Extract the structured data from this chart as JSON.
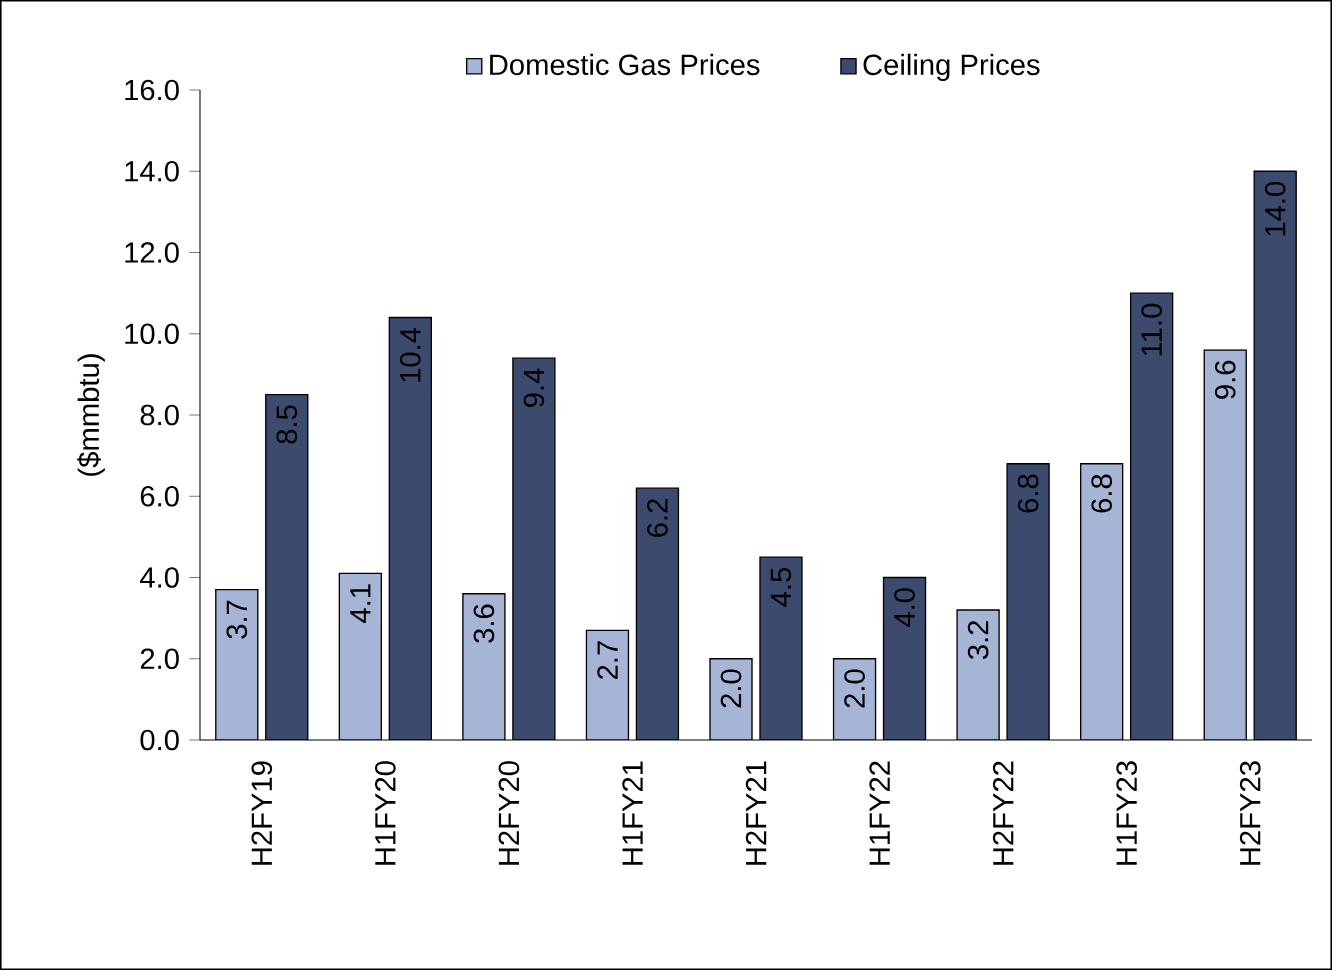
{
  "chart_data": {
    "type": "bar",
    "ylabel": "($mmbtu)",
    "categories": [
      "H2FY19",
      "H1FY20",
      "H2FY20",
      "H1FY21",
      "H2FY21",
      "H1FY22",
      "H2FY22",
      "H1FY23",
      "H2FY23"
    ],
    "series": [
      {
        "name": "Domestic Gas Prices",
        "color": "#a6b4d6",
        "values": [
          3.7,
          4.1,
          3.6,
          2.7,
          2.0,
          2.0,
          3.2,
          6.8,
          9.6
        ],
        "value_labels": [
          "3.7",
          "4.1",
          "3.6",
          "2.7",
          "2.0",
          "2.0",
          "3.2",
          "6.8",
          "9.6"
        ]
      },
      {
        "name": "Ceiling Prices",
        "color": "#3b4a6d",
        "values": [
          8.5,
          10.4,
          9.4,
          6.2,
          4.5,
          4.0,
          6.8,
          11.0,
          14.0
        ],
        "value_labels": [
          "8.5",
          "10.4",
          "9.4",
          "6.2",
          "4.5",
          "4.0",
          "6.8",
          "11.0",
          "14.0"
        ]
      }
    ],
    "ylim": [
      0,
      16
    ],
    "yticks": [
      {
        "value": 0,
        "label": "0.0"
      },
      {
        "value": 2,
        "label": "2.0"
      },
      {
        "value": 4,
        "label": "4.0"
      },
      {
        "value": 6,
        "label": "6.0"
      },
      {
        "value": 8,
        "label": "8.0"
      },
      {
        "value": 10,
        "label": "10.0"
      },
      {
        "value": 12,
        "label": "12.0"
      },
      {
        "value": 14,
        "label": "14.0"
      },
      {
        "value": 16,
        "label": "16.0"
      }
    ],
    "legend": "top",
    "grid": false
  }
}
